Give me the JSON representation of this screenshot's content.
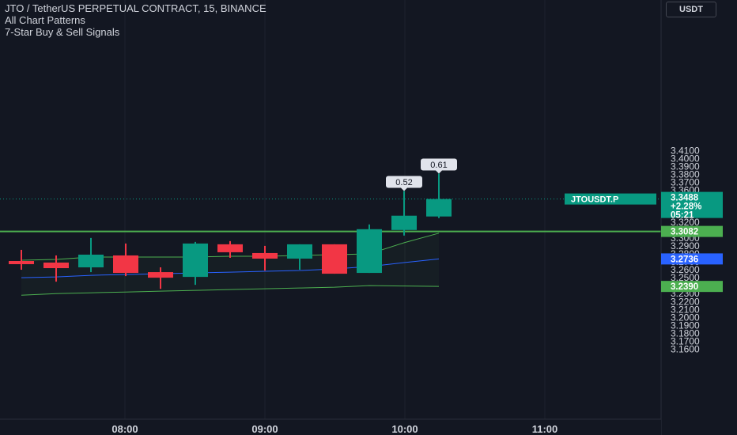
{
  "header": {
    "title": "JTO / TetherUS PERPETUAL CONTRACT, 15, BINANCE",
    "indicators": [
      "All Chart Patterns",
      "7-Star Buy & Sell Signals"
    ],
    "currency": "USDT"
  },
  "chart_data": {
    "type": "candlestick",
    "symbol": "JTOUSDT.P",
    "exchange": "BINANCE",
    "interval": "15",
    "x_ticks": [
      "08:00",
      "09:00",
      "10:00",
      "11:00"
    ],
    "y_range": [
      3.16,
      3.42
    ],
    "y_ticks": [
      "3.1600",
      "3.1700",
      "3.1800",
      "3.1900",
      "3.2000",
      "3.2100",
      "3.2200",
      "3.2300",
      "3.2400",
      "3.2500",
      "3.2600",
      "3.2700",
      "3.2800",
      "3.2900",
      "3.3000",
      "3.3100",
      "3.3200",
      "3.3300",
      "3.3400",
      "3.3500",
      "3.3600",
      "3.3700",
      "3.3800",
      "3.3900",
      "3.4000",
      "3.4100"
    ],
    "candles": [
      {
        "o": 3.271,
        "h": 3.285,
        "l": 3.26,
        "c": 3.267
      },
      {
        "o": 3.269,
        "h": 3.278,
        "l": 3.245,
        "c": 3.262
      },
      {
        "o": 3.263,
        "h": 3.3,
        "l": 3.257,
        "c": 3.279
      },
      {
        "o": 3.278,
        "h": 3.293,
        "l": 3.252,
        "c": 3.256
      },
      {
        "o": 3.257,
        "h": 3.263,
        "l": 3.236,
        "c": 3.25
      },
      {
        "o": 3.251,
        "h": 3.295,
        "l": 3.241,
        "c": 3.293
      },
      {
        "o": 3.292,
        "h": 3.296,
        "l": 3.275,
        "c": 3.282
      },
      {
        "o": 3.281,
        "h": 3.29,
        "l": 3.259,
        "c": 3.274
      },
      {
        "o": 3.274,
        "h": 3.292,
        "l": 3.26,
        "c": 3.292
      },
      {
        "o": 3.292,
        "h": 3.292,
        "l": 3.255,
        "c": 3.255
      },
      {
        "o": 3.256,
        "h": 3.317,
        "l": 3.256,
        "c": 3.311
      },
      {
        "o": 3.31,
        "h": 3.359,
        "l": 3.303,
        "c": 3.328
      },
      {
        "o": 3.327,
        "h": 3.381,
        "l": 3.325,
        "c": 3.349
      }
    ],
    "upper_band": [
      3.272,
      3.273,
      3.276,
      3.276,
      3.276,
      3.276,
      3.277,
      3.277,
      3.278,
      3.279,
      3.28,
      3.294,
      3.306
    ],
    "middle_band": [
      3.25,
      3.251,
      3.253,
      3.254,
      3.255,
      3.256,
      3.257,
      3.258,
      3.259,
      3.261,
      3.264,
      3.269,
      3.2736
    ],
    "lower_band": [
      3.228,
      3.23,
      3.231,
      3.232,
      3.233,
      3.234,
      3.235,
      3.236,
      3.237,
      3.238,
      3.24,
      3.2395,
      3.239
    ],
    "horizontal_line": 3.3082,
    "callouts": [
      {
        "candle": 11,
        "text": "0.52"
      },
      {
        "candle": 12,
        "text": "0.61"
      }
    ],
    "price_labels": {
      "symbol_tag": "JTOUSDT.P",
      "last_price": "3.3488",
      "change": "+2.28%",
      "countdown": "05:21",
      "line_price": "3.3082",
      "middle_price": "3.2736",
      "lower_price": "3.2390"
    },
    "colors": {
      "up": "#089981",
      "down": "#f23645",
      "line": "#4caf50",
      "middle": "#2962ff",
      "band": "#4caf50",
      "background": "#131722",
      "grid": "#1e222d",
      "text": "#d1d4dc"
    }
  }
}
